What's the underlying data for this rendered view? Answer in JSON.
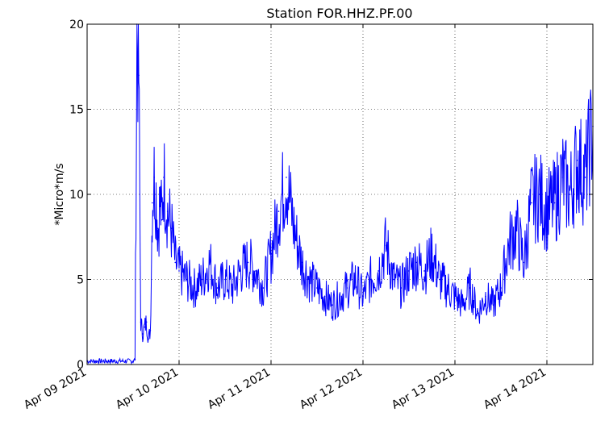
{
  "chart_data": {
    "type": "line",
    "title": "Station FOR.HHZ.PF.00",
    "xlabel": "",
    "ylabel": "*Micro*m/s",
    "xlim": [
      "2021-04-09",
      "2021-04-14 12:00"
    ],
    "ylim": [
      0,
      20
    ],
    "grid": true,
    "x_ticks": [
      {
        "x": "2021-04-09",
        "label": "Apr 09 2021"
      },
      {
        "x": "2021-04-10",
        "label": "Apr 10 2021"
      },
      {
        "x": "2021-04-11",
        "label": "Apr 11 2021"
      },
      {
        "x": "2021-04-12",
        "label": "Apr 12 2021"
      },
      {
        "x": "2021-04-13",
        "label": "Apr 13 2021"
      },
      {
        "x": "2021-04-14",
        "label": "Apr 14 2021"
      }
    ],
    "y_ticks": [
      0,
      5,
      10,
      15,
      20
    ],
    "colors": {
      "line": "#0000ff"
    },
    "series": [
      {
        "x": [
          "2021-04-09 00:00",
          "2021-04-09 03:00",
          "2021-04-09 06:00",
          "2021-04-09 09:00",
          "2021-04-09 12:00",
          "2021-04-09 12:30",
          "2021-04-09 13:00",
          "2021-04-09 13:30",
          "2021-04-09 14:00",
          "2021-04-09 14:30",
          "2021-04-09 15:00",
          "2021-04-09 15:30",
          "2021-04-09 16:00",
          "2021-04-09 16:30",
          "2021-04-09 17:00",
          "2021-04-09 17:30",
          "2021-04-09 18:00",
          "2021-04-09 18:30",
          "2021-04-09 19:00",
          "2021-04-09 19:30",
          "2021-04-09 20:00",
          "2021-04-09 21:00",
          "2021-04-09 22:00",
          "2021-04-09 23:00",
          "2021-04-10 00:00",
          "2021-04-10 02:00",
          "2021-04-10 04:00",
          "2021-04-10 06:00",
          "2021-04-10 08:00",
          "2021-04-10 10:00",
          "2021-04-10 12:00",
          "2021-04-10 14:00",
          "2021-04-10 16:00",
          "2021-04-10 18:00",
          "2021-04-10 20:00",
          "2021-04-10 22:00",
          "2021-04-11 00:00",
          "2021-04-11 02:00",
          "2021-04-11 04:00",
          "2021-04-11 06:00",
          "2021-04-11 08:00",
          "2021-04-11 10:00",
          "2021-04-11 12:00",
          "2021-04-11 14:00",
          "2021-04-11 16:00",
          "2021-04-11 18:00",
          "2021-04-11 20:00",
          "2021-04-11 22:00",
          "2021-04-12 00:00",
          "2021-04-12 02:00",
          "2021-04-12 04:00",
          "2021-04-12 06:00",
          "2021-04-12 08:00",
          "2021-04-12 10:00",
          "2021-04-12 12:00",
          "2021-04-12 14:00",
          "2021-04-12 16:00",
          "2021-04-12 18:00",
          "2021-04-12 20:00",
          "2021-04-12 22:00",
          "2021-04-13 00:00",
          "2021-04-13 02:00",
          "2021-04-13 04:00",
          "2021-04-13 06:00",
          "2021-04-13 08:00",
          "2021-04-13 10:00",
          "2021-04-13 12:00",
          "2021-04-13 14:00",
          "2021-04-13 16:00",
          "2021-04-13 18:00",
          "2021-04-13 20:00",
          "2021-04-13 22:00",
          "2021-04-14 00:00",
          "2021-04-14 02:00",
          "2021-04-14 04:00",
          "2021-04-14 06:00",
          "2021-04-14 08:00",
          "2021-04-14 10:00",
          "2021-04-14 12:00"
        ],
        "values": [
          0.2,
          0.2,
          0.2,
          0.2,
          0.2,
          0.3,
          20,
          17,
          2.5,
          1.8,
          2.2,
          2.5,
          1.5,
          2,
          9.5,
          11,
          10,
          8,
          9.5,
          8.5,
          11,
          9,
          8,
          6,
          5.5,
          5,
          4.5,
          5,
          6,
          4.5,
          5,
          4.5,
          5.5,
          6,
          5.5,
          4.5,
          6.5,
          9,
          11,
          8,
          6,
          5,
          4.5,
          4,
          3.5,
          4,
          4.5,
          5,
          4,
          5,
          5.5,
          7,
          5,
          4.5,
          5.5,
          6,
          5.5,
          6.5,
          5,
          4.5,
          4,
          3.5,
          4.5,
          3,
          4,
          3.5,
          4.5,
          7,
          8,
          6,
          9.5,
          10,
          9,
          9.5,
          11,
          10,
          12,
          11,
          14
        ]
      }
    ]
  }
}
